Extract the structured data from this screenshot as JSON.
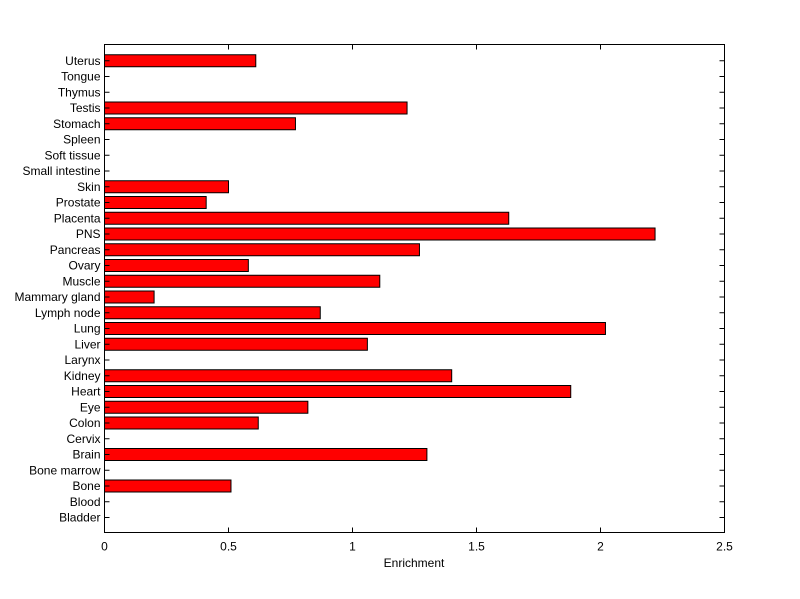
{
  "chart_data": {
    "type": "bar",
    "orientation": "horizontal",
    "title": "",
    "xlabel": "Enrichment",
    "ylabel": "",
    "xlim": [
      0,
      2.5
    ],
    "x_ticks": [
      "0",
      "0.5",
      "1",
      "1.5",
      "2",
      "2.5"
    ],
    "grid": false,
    "categories": [
      "Bladder",
      "Blood",
      "Bone",
      "Bone marrow",
      "Brain",
      "Cervix",
      "Colon",
      "Eye",
      "Heart",
      "Kidney",
      "Larynx",
      "Liver",
      "Lung",
      "Lymph node",
      "Mammary gland",
      "Muscle",
      "Ovary",
      "Pancreas",
      "PNS",
      "Placenta",
      "Prostate",
      "Skin",
      "Small intestine",
      "Soft tissue",
      "Spleen",
      "Stomach",
      "Testis",
      "Thymus",
      "Tongue",
      "Uterus"
    ],
    "values": [
      0,
      0,
      0.51,
      0,
      1.3,
      0,
      0.62,
      0.82,
      1.88,
      1.4,
      0,
      1.06,
      2.02,
      0.87,
      0.2,
      1.11,
      0.58,
      1.27,
      2.22,
      1.63,
      0.41,
      0.5,
      0,
      0,
      0,
      0.77,
      1.22,
      0,
      0,
      0.61
    ],
    "bar_color": "#ff0000",
    "edge_color": "#000000"
  }
}
